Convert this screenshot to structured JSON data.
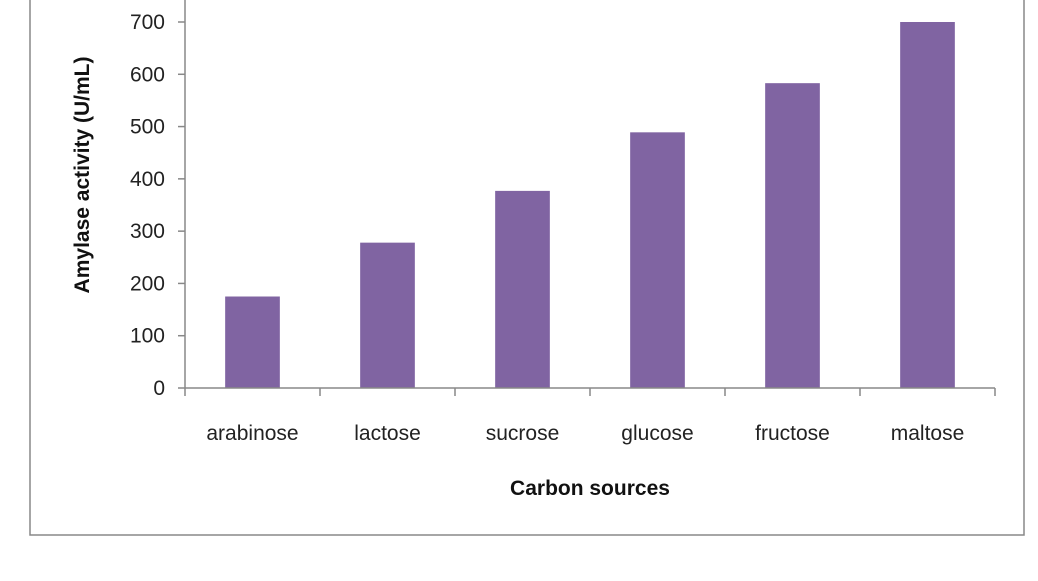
{
  "chart_data": {
    "type": "bar",
    "title": "",
    "xlabel": "Carbon sources",
    "ylabel": "Amylase activity (U/mL)",
    "categories": [
      "arabinose",
      "lactose",
      "sucrose",
      "glucose",
      "fructose",
      "maltose"
    ],
    "series": [
      {
        "values": [
          175,
          278,
          377,
          489,
          583,
          700
        ],
        "color": "#8064A2"
      }
    ],
    "ylim": [
      0,
      700
    ],
    "yticks": [
      0,
      100,
      200,
      300,
      400,
      500,
      600,
      700
    ],
    "grid": false,
    "legend": "none"
  }
}
